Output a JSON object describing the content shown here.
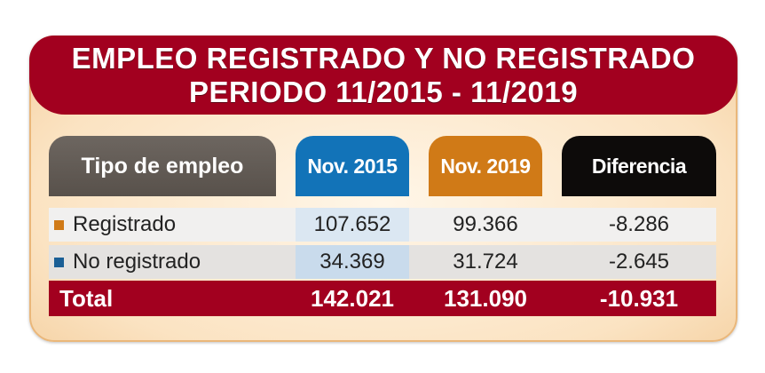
{
  "title": {
    "line1": "EMPLEO REGISTRADO Y NO REGISTRADO",
    "line2": "PERIODO 11/2015 - 11/2019"
  },
  "colors": {
    "banner": "#a2001f",
    "nov2015": "#1273b8",
    "nov2019": "#d07a17",
    "diferencia": "#0d0b0a",
    "tipo": "#5e5751"
  },
  "chart_data": {
    "type": "table",
    "columns": [
      "Tipo de empleo",
      "Nov. 2015",
      "Nov. 2019",
      "Diferencia"
    ],
    "rows": [
      {
        "label": "Registrado",
        "marker_color": "#d07a17",
        "nov2015": "107.652",
        "nov2019": "99.366",
        "diferencia": "-8.286"
      },
      {
        "label": "No registrado",
        "marker_color": "#1a5f96",
        "nov2015": "34.369",
        "nov2019": "31.724",
        "diferencia": "-2.645"
      }
    ],
    "total": {
      "label": "Total",
      "nov2015": "142.021",
      "nov2019": "131.090",
      "diferencia": "-10.931"
    }
  }
}
